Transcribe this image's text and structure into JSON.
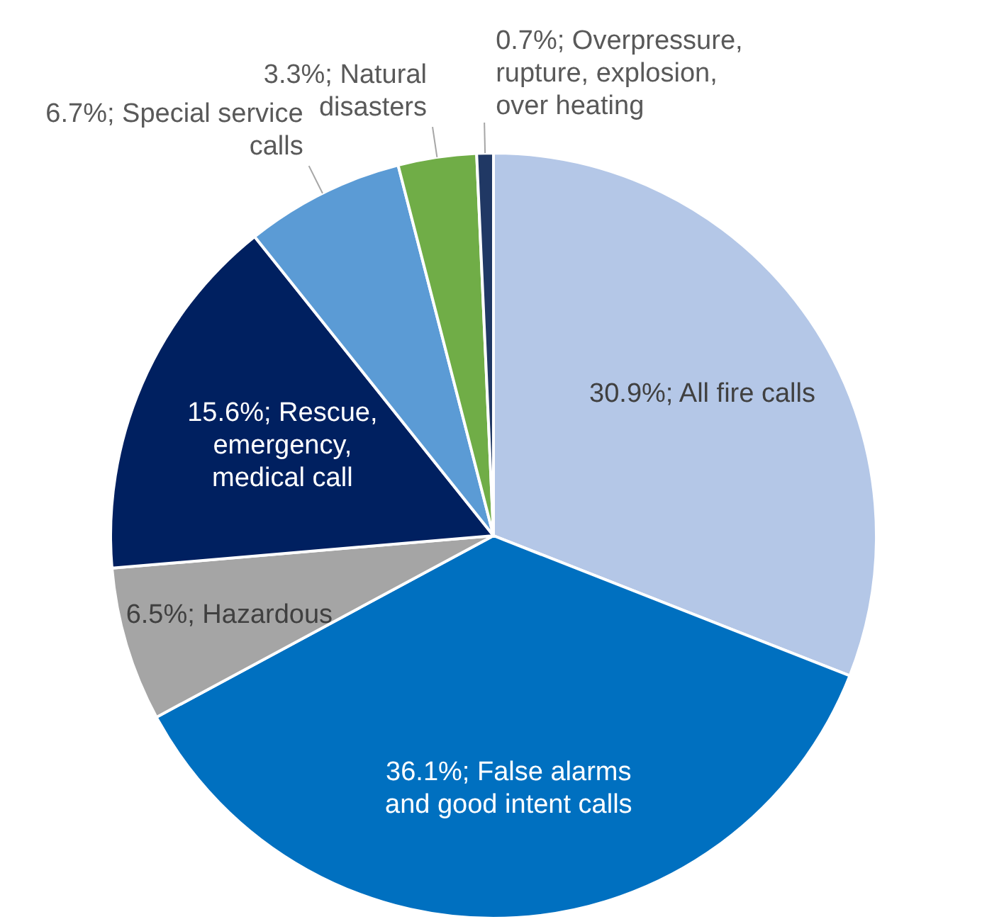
{
  "chart_data": {
    "type": "pie",
    "categories": [
      "All fire calls",
      "False alarms and good intent calls",
      "Hazardous",
      "Rescue, emergency, medical call",
      "Special service calls",
      "Natural disasters",
      "Overpressure, rupture, explosion, over heating"
    ],
    "values": [
      30.9,
      36.1,
      6.5,
      15.6,
      6.7,
      3.3,
      0.7
    ],
    "colors": [
      "#b4c7e7",
      "#0070c0",
      "#a5a5a5",
      "#002060",
      "#5b9bd5",
      "#70ad47",
      "#203864"
    ],
    "value_labels": [
      "30.9%;",
      "36.1%;",
      "6.5%;",
      "15.6%;",
      "6.7%;",
      "3.3%;",
      "0.7%;"
    ]
  }
}
